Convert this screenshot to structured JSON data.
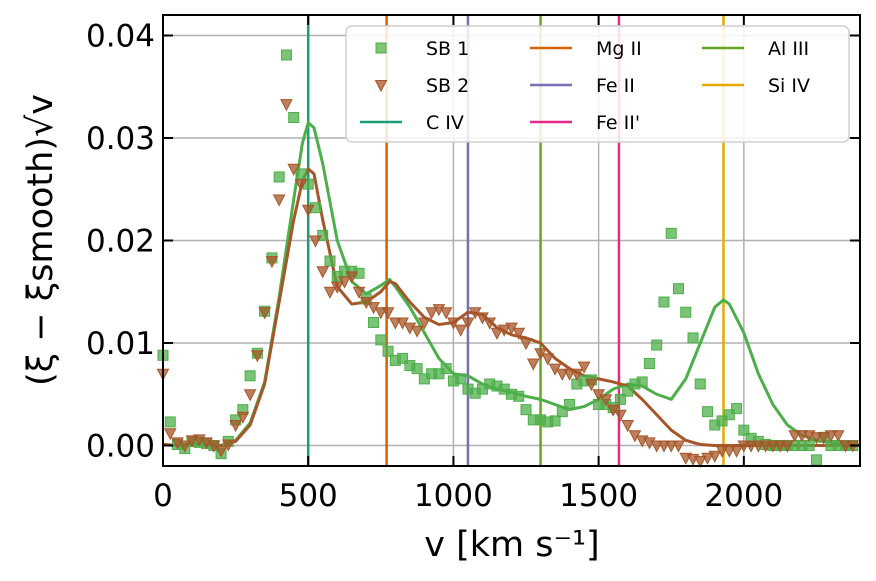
{
  "chart_data": {
    "type": "scatter",
    "xlabel": "v [km s⁻¹]",
    "ylabel": "(ξ − ξsmooth)√v",
    "xlim": [
      0,
      2400
    ],
    "ylim": [
      -0.002,
      0.042
    ],
    "xticks": [
      0,
      500,
      1000,
      1500,
      2000
    ],
    "xtick_labels": [
      "0",
      "500",
      "1000",
      "1500",
      "2000"
    ],
    "yticks": [
      0.0,
      0.01,
      0.02,
      0.03,
      0.04
    ],
    "ytick_labels": [
      "0.00",
      "0.01",
      "0.02",
      "0.03",
      "0.04"
    ],
    "grid": true,
    "legend_position": "top-right",
    "colors": {
      "sb1": "#4daf4a",
      "sb2": "#a65628",
      "civ": "#1b9e77",
      "mgii": "#d95f02",
      "feii": "#7570b3",
      "feii_prime": "#e7298a",
      "aliii": "#66a61e",
      "siiv": "#e6ab02"
    },
    "series": [
      {
        "name": "SB 1",
        "kind": "markers",
        "marker": "square",
        "color": "#4daf4a",
        "x": [
          0,
          25,
          50,
          75,
          100,
          125,
          150,
          175,
          200,
          225,
          250,
          275,
          300,
          325,
          350,
          375,
          400,
          425,
          450,
          475,
          500,
          525,
          550,
          575,
          600,
          625,
          650,
          675,
          700,
          725,
          750,
          775,
          800,
          825,
          850,
          875,
          900,
          925,
          950,
          975,
          1000,
          1025,
          1050,
          1075,
          1100,
          1125,
          1150,
          1175,
          1200,
          1225,
          1250,
          1275,
          1300,
          1325,
          1350,
          1375,
          1400,
          1425,
          1450,
          1475,
          1500,
          1525,
          1550,
          1575,
          1600,
          1625,
          1650,
          1675,
          1700,
          1725,
          1750,
          1775,
          1800,
          1825,
          1850,
          1875,
          1900,
          1925,
          1950,
          1975,
          2000,
          2025,
          2050,
          2075,
          2100,
          2125,
          2150,
          2175,
          2200,
          2225,
          2250,
          2275,
          2300,
          2325,
          2350,
          2375
        ],
        "y": [
          0.0088,
          0.0023,
          0.0001,
          -0.0003,
          0.0004,
          0.0003,
          0.0002,
          0.0,
          -0.0008,
          0.0004,
          0.0025,
          0.0035,
          0.0068,
          0.009,
          0.0131,
          0.0183,
          0.0262,
          0.0381,
          0.032,
          0.0265,
          0.0255,
          0.0232,
          0.0205,
          0.018,
          0.0165,
          0.017,
          0.017,
          0.0168,
          0.0143,
          0.012,
          0.0103,
          0.0092,
          0.0083,
          0.0085,
          0.0078,
          0.0075,
          0.0065,
          0.007,
          0.007,
          0.0075,
          0.0063,
          0.0065,
          0.0055,
          0.0051,
          0.0055,
          0.006,
          0.0058,
          0.0055,
          0.005,
          0.0048,
          0.0035,
          0.0025,
          0.0025,
          0.0023,
          0.0024,
          0.0033,
          0.004,
          0.006,
          0.0063,
          0.0064,
          0.004,
          0.004,
          0.0037,
          0.0045,
          0.0053,
          0.006,
          0.0062,
          0.008,
          0.0098,
          0.014,
          0.0207,
          0.0153,
          0.013,
          0.0105,
          0.006,
          0.0033,
          0.002,
          0.0024,
          0.003,
          0.0036,
          0.0015,
          0.0007,
          0.0004,
          0.0001,
          0.0,
          0.0,
          0.0,
          0.0,
          0.0,
          0.0,
          -0.0014,
          0.0008,
          0.0,
          0.0,
          0.0,
          0.0
        ]
      },
      {
        "name": "SB 2",
        "kind": "markers",
        "marker": "triangle-down",
        "color": "#a65628",
        "x": [
          0,
          25,
          50,
          75,
          100,
          125,
          150,
          175,
          200,
          225,
          250,
          275,
          300,
          325,
          350,
          375,
          400,
          425,
          450,
          475,
          500,
          525,
          550,
          575,
          600,
          625,
          650,
          675,
          700,
          725,
          750,
          775,
          800,
          825,
          850,
          875,
          900,
          925,
          950,
          975,
          1000,
          1025,
          1050,
          1075,
          1100,
          1125,
          1150,
          1175,
          1200,
          1225,
          1250,
          1275,
          1300,
          1325,
          1350,
          1375,
          1400,
          1425,
          1450,
          1475,
          1500,
          1525,
          1550,
          1575,
          1600,
          1625,
          1650,
          1675,
          1700,
          1725,
          1750,
          1775,
          1800,
          1825,
          1850,
          1875,
          1900,
          1925,
          1950,
          1975,
          2000,
          2025,
          2050,
          2075,
          2100,
          2125,
          2150,
          2175,
          2200,
          2225,
          2250,
          2275,
          2300,
          2325,
          2350,
          2375
        ],
        "y": [
          0.007,
          0.0012,
          0.0003,
          0.0,
          0.0005,
          0.0006,
          0.0003,
          0.0,
          -0.0005,
          0.0001,
          0.002,
          0.0028,
          0.005,
          0.0088,
          0.013,
          0.018,
          0.024,
          0.0333,
          0.027,
          0.0255,
          0.023,
          0.02,
          0.017,
          0.015,
          0.0155,
          0.016,
          0.0165,
          0.015,
          0.014,
          0.0135,
          0.013,
          0.013,
          0.012,
          0.012,
          0.0115,
          0.0112,
          0.012,
          0.013,
          0.0133,
          0.013,
          0.012,
          0.0113,
          0.012,
          0.013,
          0.0125,
          0.012,
          0.011,
          0.0113,
          0.0115,
          0.011,
          0.01,
          0.008,
          0.009,
          0.0085,
          0.0075,
          0.007,
          0.007,
          0.007,
          0.0077,
          0.006,
          0.005,
          0.0045,
          0.0035,
          0.003,
          0.002,
          0.001,
          0.0005,
          0.0003,
          0.0,
          0.0,
          0.0,
          0.0,
          -0.0012,
          -0.0013,
          -0.0015,
          -0.0012,
          -0.001,
          -0.0005,
          -0.0005,
          -0.0005,
          0.0,
          0.0,
          0.0,
          0.0,
          0.0,
          0.0,
          0.0,
          0.001,
          0.001,
          0.001,
          0.0008,
          0.0008,
          0.001,
          0.001,
          0.0,
          0.0
        ]
      },
      {
        "name": "SB 1 smooth",
        "kind": "line",
        "color": "#4daf4a",
        "x": [
          0,
          50,
          100,
          150,
          200,
          250,
          300,
          350,
          400,
          450,
          480,
          500,
          520,
          550,
          600,
          650,
          700,
          750,
          780,
          800,
          850,
          900,
          950,
          1000,
          1050,
          1100,
          1150,
          1200,
          1250,
          1300,
          1350,
          1400,
          1450,
          1500,
          1550,
          1600,
          1650,
          1700,
          1750,
          1800,
          1850,
          1900,
          1930,
          1950,
          2000,
          2050,
          2100,
          2150,
          2200,
          2250,
          2300,
          2350,
          2400
        ],
        "y": [
          0.0001,
          0.0,
          0.0001,
          0.0001,
          0.0,
          0.0005,
          0.0022,
          0.0062,
          0.0145,
          0.024,
          0.0295,
          0.0315,
          0.031,
          0.0275,
          0.02,
          0.016,
          0.0148,
          0.0156,
          0.0162,
          0.0155,
          0.0135,
          0.011,
          0.0085,
          0.007,
          0.0068,
          0.006,
          0.0055,
          0.0052,
          0.0048,
          0.0045,
          0.004,
          0.0035,
          0.0038,
          0.0045,
          0.0055,
          0.006,
          0.0058,
          0.005,
          0.0045,
          0.0065,
          0.01,
          0.0135,
          0.0142,
          0.0138,
          0.011,
          0.007,
          0.004,
          0.002,
          0.001,
          0.0005,
          0.0003,
          0.0001,
          0.0001
        ]
      },
      {
        "name": "SB 2 smooth",
        "kind": "line",
        "color": "#a65628",
        "x": [
          0,
          50,
          100,
          150,
          200,
          250,
          300,
          350,
          400,
          450,
          480,
          500,
          520,
          550,
          600,
          650,
          700,
          750,
          780,
          800,
          850,
          900,
          950,
          1000,
          1050,
          1100,
          1150,
          1200,
          1250,
          1300,
          1350,
          1400,
          1450,
          1500,
          1550,
          1600,
          1650,
          1700,
          1750,
          1800,
          1850,
          1900,
          1950,
          2000,
          2050,
          2100,
          2150,
          2200,
          2250,
          2300,
          2350,
          2400
        ],
        "y": [
          0.0001,
          0.0,
          0.0001,
          0.0001,
          0.0,
          0.0004,
          0.002,
          0.006,
          0.014,
          0.022,
          0.0258,
          0.027,
          0.0265,
          0.022,
          0.0155,
          0.0138,
          0.014,
          0.015,
          0.016,
          0.0158,
          0.014,
          0.0125,
          0.0118,
          0.012,
          0.013,
          0.0128,
          0.0115,
          0.0108,
          0.0105,
          0.01,
          0.0085,
          0.0075,
          0.0068,
          0.0065,
          0.0062,
          0.0058,
          0.0045,
          0.003,
          0.0015,
          0.0005,
          0.0001,
          0.0,
          0.0,
          0.0,
          0.0,
          0.0,
          0.0,
          0.0,
          0.0,
          0.0,
          0.0,
          0.0
        ]
      }
    ],
    "vlines": [
      {
        "name": "C IV",
        "x": 500,
        "color": "#1b9e77"
      },
      {
        "name": "Mg II",
        "x": 770,
        "color": "#d95f02"
      },
      {
        "name": "Fe II",
        "x": 1050,
        "color": "#7570b3"
      },
      {
        "name": "Fe II'",
        "x": 1570,
        "color": "#e7298a"
      },
      {
        "name": "Al III",
        "x": 1300,
        "color": "#66a61e"
      },
      {
        "name": "Si IV",
        "x": 1930,
        "color": "#e6ab02"
      }
    ],
    "legend": [
      {
        "label": "SB 1",
        "marker": "square",
        "color": "#4daf4a"
      },
      {
        "label": "SB 2",
        "marker": "triangle-down",
        "color": "#a65628"
      },
      {
        "label": "C IV",
        "marker": "line",
        "color": "#1b9e77"
      },
      {
        "label": "Mg II",
        "marker": "line",
        "color": "#d95f02"
      },
      {
        "label": "Fe II",
        "marker": "line",
        "color": "#7570b3"
      },
      {
        "label": "Fe II'",
        "marker": "line",
        "color": "#e7298a"
      },
      {
        "label": "Al III",
        "marker": "line",
        "color": "#66a61e"
      },
      {
        "label": "Si IV",
        "marker": "line",
        "color": "#e6ab02"
      }
    ]
  }
}
